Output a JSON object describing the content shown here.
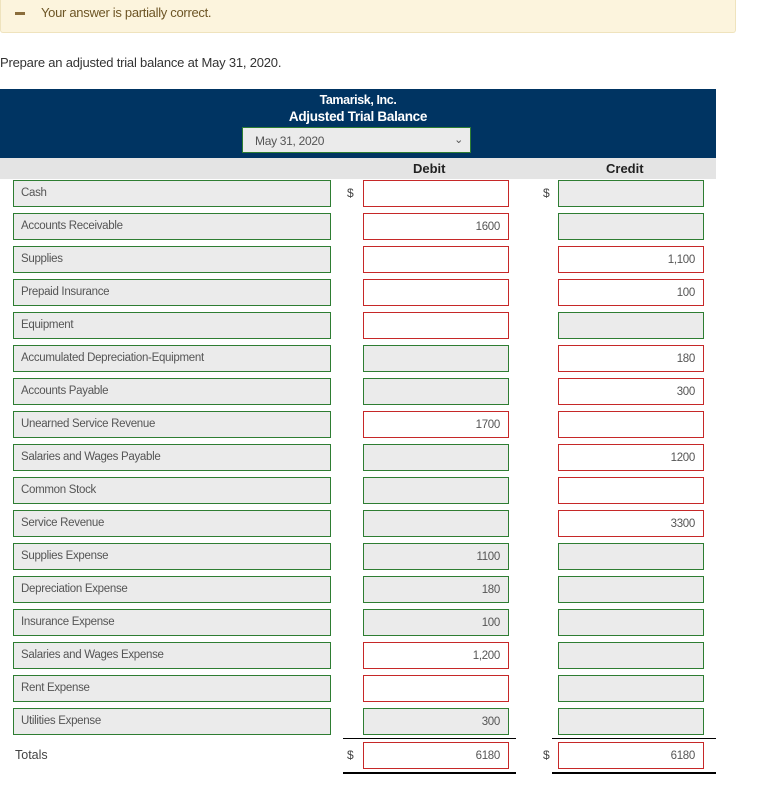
{
  "banner": {
    "icon": "minus-icon",
    "message": "Your answer is partially correct."
  },
  "prompt": "Prepare an adjusted trial balance at May 31, 2020.",
  "header": {
    "company": "Tamarisk, Inc.",
    "title": "Adjusted Trial Balance",
    "date_select": "May 31, 2020"
  },
  "columns": {
    "debit": "Debit",
    "credit": "Credit"
  },
  "currency": "$",
  "colors": {
    "header": "#003462",
    "correct": "#2e7d32",
    "incorrect": "#c62828"
  },
  "rows": [
    {
      "account": "Cash",
      "debit": "",
      "credit": "",
      "debit_status": "incorrect",
      "credit_status": "correct"
    },
    {
      "account": "Accounts Receivable",
      "debit": "1600",
      "credit": "",
      "debit_status": "incorrect",
      "credit_status": "correct"
    },
    {
      "account": "Supplies",
      "debit": "",
      "credit": "1,100",
      "debit_status": "incorrect",
      "credit_status": "incorrect"
    },
    {
      "account": "Prepaid Insurance",
      "debit": "",
      "credit": "100",
      "debit_status": "incorrect",
      "credit_status": "incorrect"
    },
    {
      "account": "Equipment",
      "debit": "",
      "credit": "",
      "debit_status": "incorrect",
      "credit_status": "correct"
    },
    {
      "account": "Accumulated Depreciation-Equipment",
      "debit": "",
      "credit": "180",
      "debit_status": "correct",
      "credit_status": "incorrect"
    },
    {
      "account": "Accounts Payable",
      "debit": "",
      "credit": "300",
      "debit_status": "correct",
      "credit_status": "incorrect"
    },
    {
      "account": "Unearned Service Revenue",
      "debit": "1700",
      "credit": "",
      "debit_status": "incorrect",
      "credit_status": "incorrect"
    },
    {
      "account": "Salaries and Wages Payable",
      "debit": "",
      "credit": "1200",
      "debit_status": "correct",
      "credit_status": "incorrect"
    },
    {
      "account": "Common Stock",
      "debit": "",
      "credit": "",
      "debit_status": "correct",
      "credit_status": "incorrect"
    },
    {
      "account": "Service Revenue",
      "debit": "",
      "credit": "3300",
      "debit_status": "correct",
      "credit_status": "incorrect"
    },
    {
      "account": "Supplies Expense",
      "debit": "1100",
      "credit": "",
      "debit_status": "correct",
      "credit_status": "correct"
    },
    {
      "account": "Depreciation Expense",
      "debit": "180",
      "credit": "",
      "debit_status": "correct",
      "credit_status": "correct"
    },
    {
      "account": "Insurance Expense",
      "debit": "100",
      "credit": "",
      "debit_status": "correct",
      "credit_status": "correct"
    },
    {
      "account": "Salaries and Wages Expense",
      "debit": "1,200",
      "credit": "",
      "debit_status": "incorrect",
      "credit_status": "correct"
    },
    {
      "account": "Rent Expense",
      "debit": "",
      "credit": "",
      "debit_status": "incorrect",
      "credit_status": "correct"
    },
    {
      "account": "Utilities Expense",
      "debit": "300",
      "credit": "",
      "debit_status": "correct",
      "credit_status": "correct"
    }
  ],
  "totals": {
    "label": "Totals",
    "debit": "6180",
    "credit": "6180",
    "debit_status": "incorrect",
    "credit_status": "incorrect"
  }
}
